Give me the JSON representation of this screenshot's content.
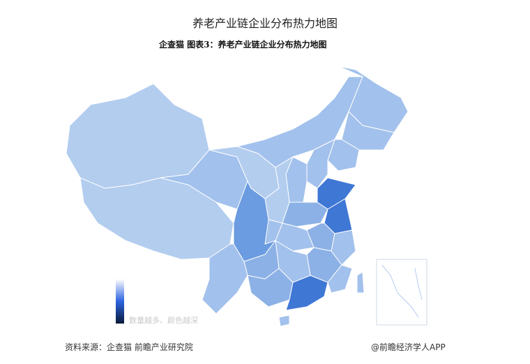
{
  "title": "养老产业链企业分布热力地图",
  "subtitle": "企查猫  图表3：养老产业链企业分布热力地图",
  "legend": {
    "text": "数量越多、颜色越深",
    "colors": [
      "#ffffff",
      "#2d64e0",
      "#0a1a3a"
    ]
  },
  "palette": {
    "1": "#b3cdef",
    "2": "#a2c1ec",
    "3": "#8cb1e6",
    "4": "#6b9be0",
    "5": "#3f77d5"
  },
  "region_levels": [
    1,
    1,
    2,
    1,
    2,
    2,
    2,
    2,
    2,
    2,
    1,
    5,
    3,
    5,
    3,
    2,
    4,
    2,
    2,
    3,
    2,
    3,
    2,
    3,
    5,
    2,
    2,
    2
  ],
  "source": "资料来源：企查猫 前瞻产业研究院",
  "credit": "@前瞻经济学人APP"
}
